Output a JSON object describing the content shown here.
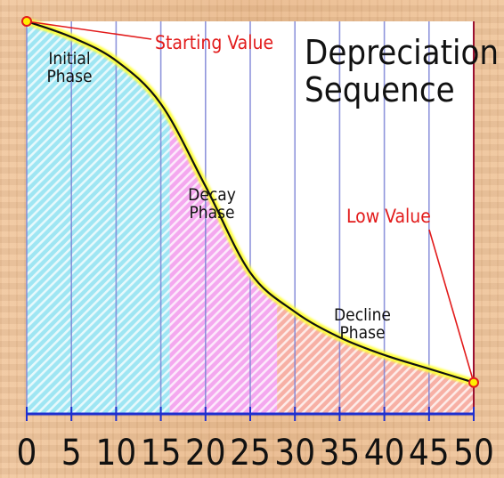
{
  "chart_data": {
    "type": "area",
    "title_lines": [
      "Depreciation",
      "Sequence"
    ],
    "x": [
      0,
      5,
      10,
      15,
      20,
      25,
      30,
      35,
      40,
      45,
      50
    ],
    "y": [
      100,
      96,
      90,
      79,
      58,
      36,
      26,
      19.5,
      15,
      11.5,
      8
    ],
    "xlim": [
      0,
      50
    ],
    "ylim": [
      0,
      100
    ],
    "xticks": [
      "0",
      "5",
      "10",
      "15",
      "20",
      "25",
      "30",
      "35",
      "40",
      "45",
      "50"
    ],
    "grid": "vertical",
    "phases": [
      {
        "label_lines": [
          "Initial",
          "Phase"
        ],
        "x_start": 0,
        "x_end": 16,
        "color": "#9fe6f3"
      },
      {
        "label_lines": [
          "Decay",
          "Phase"
        ],
        "x_start": 16,
        "x_end": 28,
        "color": "#f4a8ef"
      },
      {
        "label_lines": [
          "Decline",
          "Phase"
        ],
        "x_start": 28,
        "x_end": 50,
        "color": "#f7b0a5"
      }
    ],
    "annotations": [
      {
        "text": "Starting Value",
        "x": 0,
        "y": 100
      },
      {
        "text": "Low Value",
        "x": 50,
        "y": 8
      }
    ],
    "colors": {
      "curve": "#111111",
      "curve_glow": "#ffff3a",
      "grid": "#7c83d6",
      "annotation": "#e21b1b",
      "axis": "#1e2fd0"
    }
  }
}
